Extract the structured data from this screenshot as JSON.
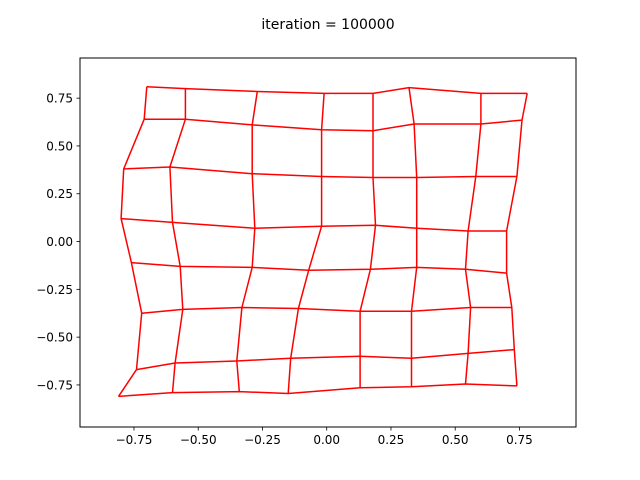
{
  "chart_data": {
    "type": "line",
    "title": "iteration = 100000",
    "xlabel": "",
    "ylabel": "",
    "xlim": [
      -0.96,
      0.97
    ],
    "ylim": [
      -0.97,
      0.96
    ],
    "x_ticks": [
      -0.75,
      -0.5,
      -0.25,
      0.0,
      0.25,
      0.5,
      0.75
    ],
    "x_tick_labels": [
      "−0.75",
      "−0.50",
      "−0.25",
      "0.00",
      "0.25",
      "0.50",
      "0.75"
    ],
    "y_ticks": [
      -0.75,
      -0.5,
      -0.25,
      0.0,
      0.25,
      0.5,
      0.75
    ],
    "y_tick_labels": [
      "−0.75",
      "−0.50",
      "−0.25",
      "0.00",
      "0.25",
      "0.50",
      "0.75"
    ],
    "grid": false,
    "line_color": "#ff0000",
    "mesh_columns": 8,
    "mesh_rows": 8,
    "mesh_rows_points": [
      [
        [
          -0.7,
          0.81
        ],
        [
          -0.55,
          0.8
        ],
        [
          -0.27,
          0.785
        ],
        [
          -0.01,
          0.775
        ],
        [
          0.18,
          0.775
        ],
        [
          0.32,
          0.805
        ],
        [
          0.6,
          0.775
        ],
        [
          0.78,
          0.775
        ]
      ],
      [
        [
          -0.71,
          0.64
        ],
        [
          -0.55,
          0.64
        ],
        [
          -0.29,
          0.61
        ],
        [
          -0.02,
          0.585
        ],
        [
          0.18,
          0.58
        ],
        [
          0.34,
          0.615
        ],
        [
          0.6,
          0.615
        ],
        [
          0.76,
          0.635
        ]
      ],
      [
        [
          -0.79,
          0.38
        ],
        [
          -0.61,
          0.39
        ],
        [
          -0.29,
          0.355
        ],
        [
          -0.02,
          0.34
        ],
        [
          0.18,
          0.335
        ],
        [
          0.35,
          0.335
        ],
        [
          0.58,
          0.34
        ],
        [
          0.74,
          0.34
        ]
      ],
      [
        [
          -0.8,
          0.12
        ],
        [
          -0.6,
          0.1
        ],
        [
          -0.28,
          0.07
        ],
        [
          -0.02,
          0.08
        ],
        [
          0.19,
          0.085
        ],
        [
          0.35,
          0.07
        ],
        [
          0.55,
          0.055
        ],
        [
          0.7,
          0.055
        ]
      ],
      [
        [
          -0.76,
          -0.11
        ],
        [
          -0.57,
          -0.13
        ],
        [
          -0.29,
          -0.135
        ],
        [
          -0.07,
          -0.15
        ],
        [
          0.17,
          -0.145
        ],
        [
          0.35,
          -0.135
        ],
        [
          0.54,
          -0.145
        ],
        [
          0.7,
          -0.165
        ]
      ],
      [
        [
          -0.72,
          -0.375
        ],
        [
          -0.56,
          -0.355
        ],
        [
          -0.33,
          -0.345
        ],
        [
          -0.11,
          -0.35
        ],
        [
          0.13,
          -0.365
        ],
        [
          0.33,
          -0.365
        ],
        [
          0.56,
          -0.345
        ],
        [
          0.72,
          -0.345
        ]
      ],
      [
        [
          -0.74,
          -0.67
        ],
        [
          -0.59,
          -0.635
        ],
        [
          -0.35,
          -0.625
        ],
        [
          -0.14,
          -0.61
        ],
        [
          0.13,
          -0.6
        ],
        [
          0.33,
          -0.61
        ],
        [
          0.55,
          -0.585
        ],
        [
          0.73,
          -0.565
        ]
      ],
      [
        [
          -0.81,
          -0.81
        ],
        [
          -0.6,
          -0.79
        ],
        [
          -0.34,
          -0.785
        ],
        [
          -0.15,
          -0.795
        ],
        [
          0.13,
          -0.765
        ],
        [
          0.33,
          -0.76
        ],
        [
          0.54,
          -0.745
        ],
        [
          0.74,
          -0.755
        ]
      ]
    ]
  }
}
